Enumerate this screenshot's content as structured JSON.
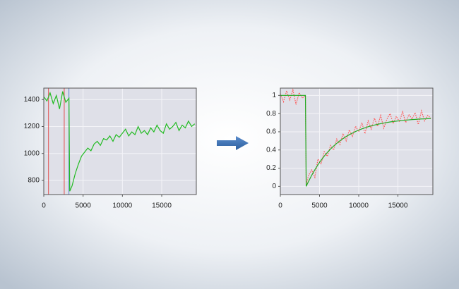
{
  "chart_data": [
    {
      "type": "line",
      "x": [
        0,
        400,
        800,
        1200,
        1600,
        2000,
        2400,
        2800,
        3200,
        3300,
        3600,
        4000,
        4400,
        4800,
        5200,
        5600,
        6000,
        6400,
        6800,
        7200,
        7600,
        8000,
        8400,
        8800,
        9200,
        9600,
        10000,
        10400,
        10800,
        11200,
        11600,
        12000,
        12400,
        12800,
        13200,
        13600,
        14000,
        14400,
        14800,
        15200,
        15600,
        16000,
        16400,
        16800,
        17200,
        17600,
        18000,
        18400,
        18800,
        19200
      ],
      "series": [
        {
          "color": "#22bb22",
          "style": "solid",
          "values": [
            1420,
            1390,
            1450,
            1370,
            1430,
            1330,
            1460,
            1380,
            1410,
            720,
            760,
            850,
            920,
            980,
            1010,
            1040,
            1020,
            1070,
            1090,
            1060,
            1110,
            1100,
            1130,
            1090,
            1140,
            1120,
            1150,
            1180,
            1130,
            1160,
            1140,
            1200,
            1150,
            1170,
            1140,
            1190,
            1160,
            1210,
            1170,
            1150,
            1220,
            1180,
            1200,
            1230,
            1170,
            1210,
            1190,
            1240,
            1200,
            1220
          ]
        }
      ],
      "vlines": [
        {
          "x": 600,
          "color": "#e05050"
        },
        {
          "x": 2600,
          "color": "#e05050"
        },
        {
          "x": 3200,
          "color": "#6080d0"
        }
      ],
      "xlim": [
        0,
        19400
      ],
      "ylim": [
        695,
        1485
      ],
      "xticks": [
        0,
        5000,
        10000,
        15000
      ],
      "yticks": [
        800,
        1000,
        1200,
        1400
      ],
      "grid": true
    },
    {
      "type": "line",
      "x": [
        0,
        400,
        800,
        1200,
        1600,
        2000,
        2400,
        2800,
        3200,
        3300,
        3600,
        4000,
        4400,
        4800,
        5200,
        5600,
        6000,
        6400,
        6800,
        7200,
        7600,
        8000,
        8400,
        8800,
        9200,
        9600,
        10000,
        10400,
        10800,
        11200,
        11600,
        12000,
        12400,
        12800,
        13200,
        13600,
        14000,
        14400,
        14800,
        15200,
        15600,
        16000,
        16400,
        16800,
        17200,
        17600,
        18000,
        18400,
        18800,
        19200
      ],
      "series": [
        {
          "color": "#ff5555",
          "style": "dotted",
          "values": [
            1.02,
            0.93,
            1.05,
            0.95,
            1.06,
            0.9,
            1.03,
            0.97,
            1.0,
            0.02,
            0.12,
            0.18,
            0.1,
            0.3,
            0.25,
            0.38,
            0.33,
            0.45,
            0.4,
            0.52,
            0.46,
            0.58,
            0.5,
            0.62,
            0.55,
            0.66,
            0.6,
            0.7,
            0.58,
            0.72,
            0.63,
            0.75,
            0.66,
            0.78,
            0.64,
            0.74,
            0.8,
            0.69,
            0.77,
            0.71,
            0.82,
            0.7,
            0.79,
            0.74,
            0.81,
            0.68,
            0.83,
            0.72,
            0.78,
            0.75
          ]
        },
        {
          "color": "#22aa22",
          "style": "solid",
          "values": [
            1,
            1,
            1,
            1,
            1,
            1,
            1,
            1,
            1,
            0,
            0.055,
            0.122,
            0.182,
            0.238,
            0.287,
            0.332,
            0.373,
            0.41,
            0.443,
            0.473,
            0.501,
            0.525,
            0.548,
            0.568,
            0.586,
            0.603,
            0.618,
            0.632,
            0.644,
            0.655,
            0.665,
            0.674,
            0.682,
            0.689,
            0.696,
            0.702,
            0.708,
            0.713,
            0.717,
            0.721,
            0.725,
            0.728,
            0.731,
            0.734,
            0.736,
            0.739,
            0.741,
            0.742,
            0.744,
            0.746
          ]
        }
      ],
      "xlim": [
        0,
        19460
      ],
      "ylim": [
        -0.09,
        1.08
      ],
      "xticks": [
        0,
        5000,
        10000,
        15000
      ],
      "yticks": [
        0,
        0.2,
        0.4,
        0.6,
        0.8,
        1
      ],
      "grid": true
    }
  ]
}
